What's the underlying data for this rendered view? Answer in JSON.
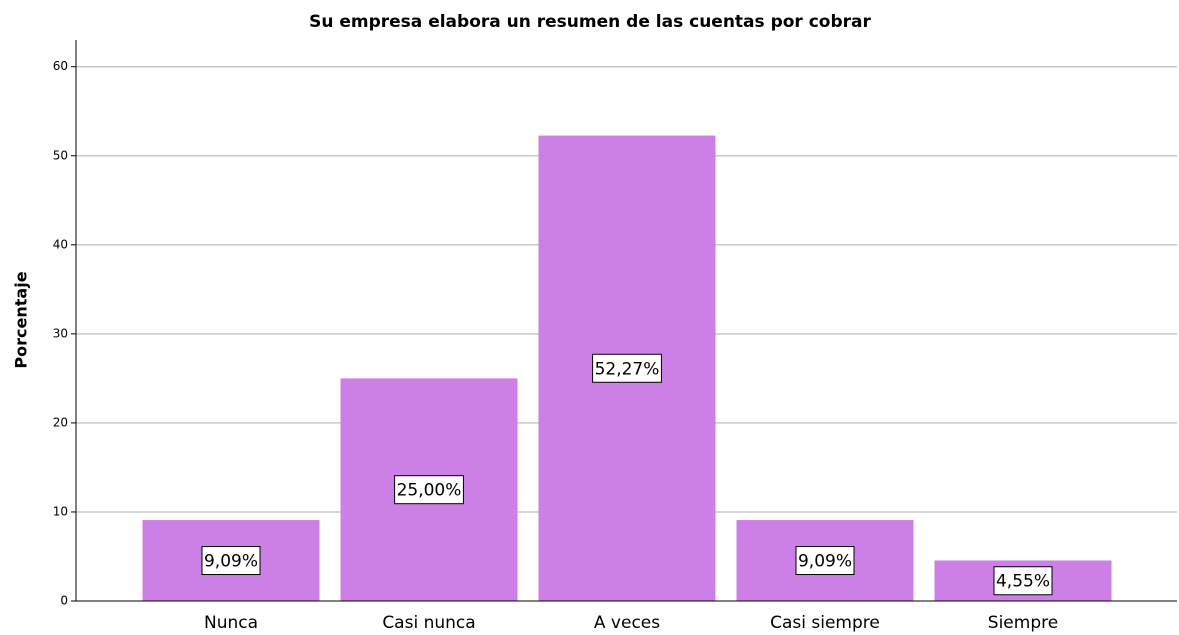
{
  "chart_data": {
    "type": "bar",
    "title": "Su empresa elabora un resumen de las cuentas por cobrar",
    "y_label": "Porcentaje",
    "categories": [
      "Nunca",
      "Casi nunca",
      "A veces",
      "Casi siempre",
      "Siempre"
    ],
    "values": [
      9.09,
      25.0,
      52.27,
      9.09,
      4.55
    ],
    "value_labels": [
      "9,09%",
      "25,00%",
      "52,27%",
      "9,09%",
      "4,55%"
    ],
    "color": "#cc80e6",
    "ylim": [
      0,
      63
    ],
    "yticks": [
      0,
      10,
      20,
      30,
      40,
      50,
      60
    ],
    "grid": true
  }
}
